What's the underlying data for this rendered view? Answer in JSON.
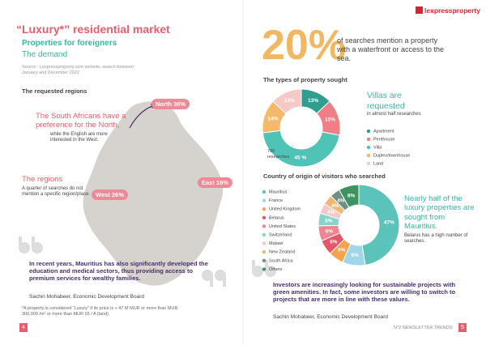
{
  "left": {
    "title": "“Luxury*” residential market",
    "subtitle": "Properties for foreigners",
    "section": "The demand",
    "source": "Source : Lexpressproperty.com website, search between January and December 2022",
    "map_heading": "The requested regions",
    "callout_title": "The South Africans have a preference for the North,",
    "callout_text": "while the English are more interested in the West.",
    "regions_title": "The regions",
    "regions_text": "A quarter of searches do not mention a specific region/place.",
    "regions": [
      "North 36%",
      "West 26%",
      "East 16%"
    ],
    "quote": "In recent years, Mauritius has also significantly developed the education and medical sectors, thus providing access to premium services for wealthy families.",
    "attribution": "Sachin Mohabeer, Economic Development Board",
    "footnote": "*A property is considered “Luxury” if its price is + 47 M MUR or more than MUR 300,000 /m² or more than MUR 65 / A (land)",
    "page": "4"
  },
  "right": {
    "logo": "lexpressproperty",
    "stat": "20%",
    "stat_text": "of searches mention a property with a waterfront or access to the sea.",
    "villas_title": "Villas are requested",
    "villas_text": "in almost half researches",
    "researches_note": "780 researches",
    "origin_title": "Nearly half of the luxury properties are sought from Mauritius.",
    "origin_text": "Belarus has a high number of searches.",
    "quote": "Investors are increasingly looking for sustainable projects with green amenities. In fact, some investors are willing to switch to projects that are more in line with these values.",
    "attribution": "Sachin Mohabeer, Economic Development Board",
    "footer": "N°2 NEWSLETTER TRENDS",
    "page": "5"
  },
  "chart_data": [
    {
      "type": "donut",
      "title": "The types of property sought",
      "categories": [
        "Apartment",
        "Penthouse",
        "Villa",
        "Duplex/townhouse",
        "Land"
      ],
      "values": [
        13,
        15,
        45,
        14,
        13
      ],
      "value_labels": [
        "13%",
        "15%",
        "45 %",
        "14%",
        "13%"
      ],
      "colors": [
        "#2f9e8f",
        "#ee7f86",
        "#4fc3b5",
        "#f5b96b",
        "#f4c9c6"
      ]
    },
    {
      "type": "donut",
      "title": "Country of origin of visitors who searched",
      "categories": [
        "Mauritius",
        "France",
        "United Kingdom",
        "Belarus",
        "United States",
        "Switzerland",
        "Malawi",
        "New Zealand",
        "South Africa",
        "Others"
      ],
      "values": [
        47,
        9,
        6,
        6,
        6,
        5,
        4,
        4,
        4,
        8
      ],
      "value_labels": [
        "47%",
        "9%",
        "6%",
        "6%",
        "6%",
        "5%",
        "4%",
        "4%",
        "4%",
        "8%"
      ],
      "colors": [
        "#5cc3bb",
        "#9fd6ea",
        "#f5a44b",
        "#e4566a",
        "#ee8590",
        "#86d5cc",
        "#f3c8c8",
        "#f1b873",
        "#6f8f80",
        "#3f9360"
      ]
    }
  ]
}
